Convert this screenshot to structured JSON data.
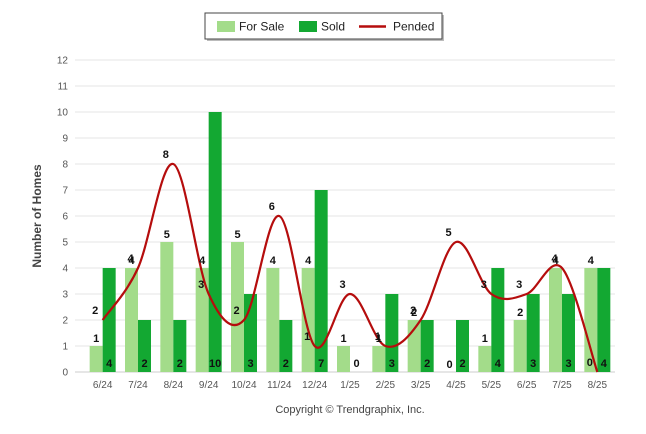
{
  "chart_data": {
    "type": "bar",
    "ylabel": "Number of Homes",
    "ylim": [
      0,
      12
    ],
    "yticks": [
      0,
      1,
      2,
      3,
      4,
      5,
      6,
      7,
      8,
      9,
      10,
      11,
      12
    ],
    "categories": [
      "6/24",
      "7/24",
      "8/24",
      "9/24",
      "10/24",
      "11/24",
      "12/24",
      "1/25",
      "2/25",
      "3/25",
      "4/25",
      "5/25",
      "6/25",
      "7/25",
      "8/25"
    ],
    "series": [
      {
        "name": "For Sale",
        "type": "bar",
        "color": "#a3dc8a",
        "values": [
          1,
          4,
          5,
          4,
          5,
          4,
          4,
          1,
          1,
          2,
          0,
          1,
          2,
          4,
          4
        ]
      },
      {
        "name": "Sold",
        "type": "bar",
        "color": "#13a832",
        "values": [
          4,
          2,
          2,
          10,
          3,
          2,
          7,
          0,
          3,
          2,
          2,
          4,
          3,
          3,
          4
        ]
      },
      {
        "name": "Pended",
        "type": "line",
        "color": "#b50d0d",
        "values": [
          2,
          4,
          8,
          3,
          2,
          6,
          1,
          3,
          1,
          2,
          5,
          3,
          3,
          4,
          0
        ]
      }
    ],
    "legend_position": "top-center",
    "grid": true
  },
  "credit": "Copyright © Trendgraphix, Inc."
}
